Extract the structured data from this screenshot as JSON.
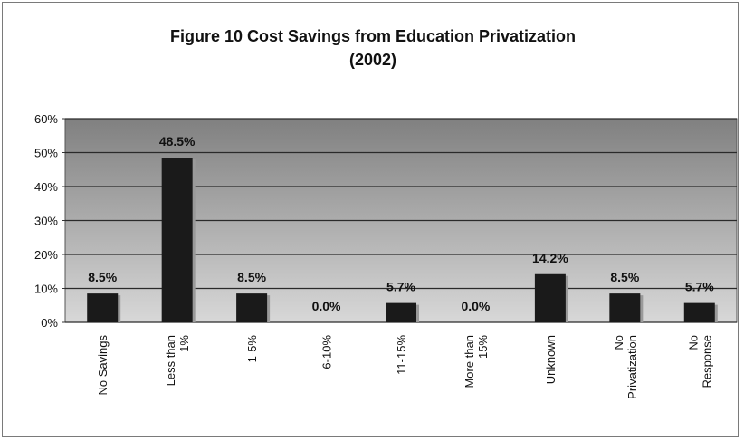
{
  "chart_data": {
    "type": "bar",
    "title_lines": [
      "Figure 10 Cost Savings from Education Privatization",
      "(2002)"
    ],
    "categories": [
      [
        "No Savings"
      ],
      [
        "Less than",
        "1%"
      ],
      [
        "1-5%"
      ],
      [
        "6-10%"
      ],
      [
        "11-15%"
      ],
      [
        "More than",
        "15%"
      ],
      [
        "Unknown"
      ],
      [
        "No",
        "Privatization"
      ],
      [
        "No",
        "Response"
      ]
    ],
    "values": [
      8.5,
      48.5,
      8.5,
      0.0,
      5.7,
      0.0,
      14.2,
      8.5,
      5.7
    ],
    "value_labels": [
      "8.5%",
      "48.5%",
      "8.5%",
      "0.0%",
      "5.7%",
      "0.0%",
      "14.2%",
      "8.5%",
      "5.7%"
    ],
    "ylim": [
      0,
      60
    ],
    "yticks": [
      0,
      10,
      20,
      30,
      40,
      50,
      60
    ],
    "ytick_labels": [
      "0%",
      "10%",
      "20%",
      "30%",
      "40%",
      "50%",
      "60%"
    ],
    "grid": true,
    "legend": "none",
    "colors": {
      "bar": "#1a1a1a",
      "plot_top": "#808080",
      "plot_bottom": "#d8d8d8",
      "grid": "#2a2a2a"
    }
  }
}
